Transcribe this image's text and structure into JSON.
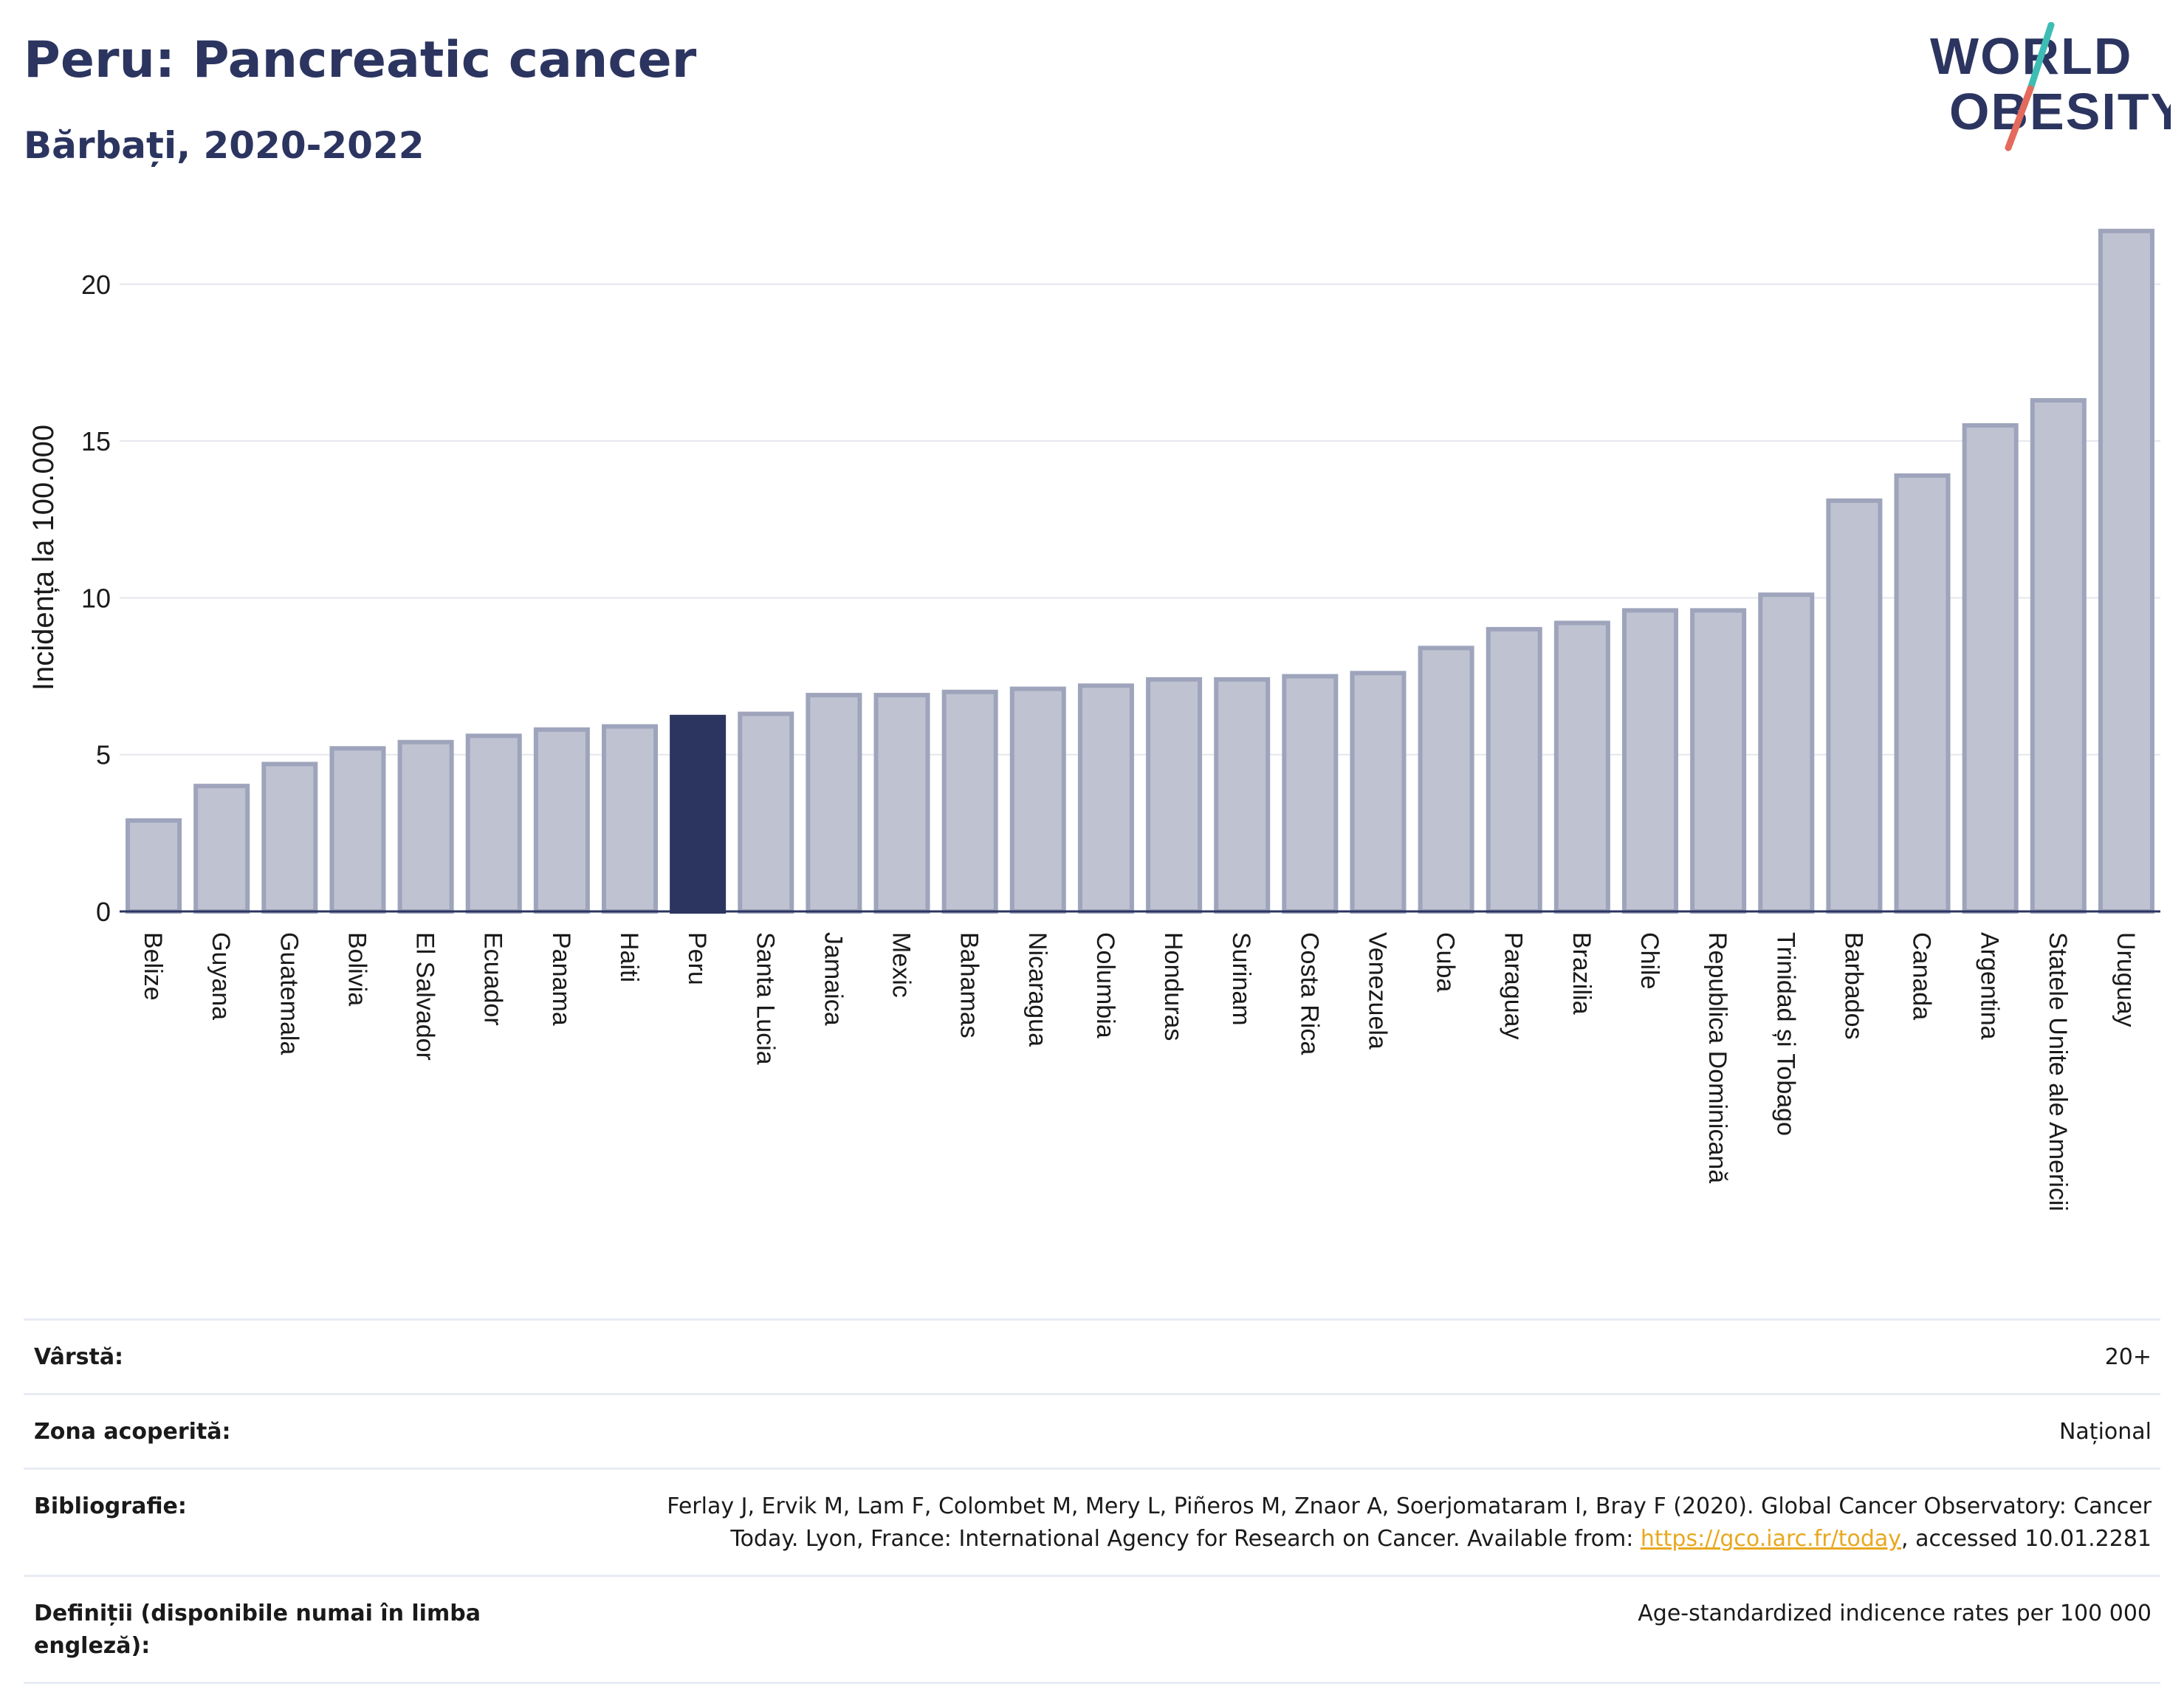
{
  "header": {
    "title": "Peru: Pancreatic cancer",
    "subtitle": "Bărbați, 2020-2022"
  },
  "logo": {
    "line1": "WORLD",
    "line2": "OBESITY"
  },
  "colors": {
    "title": "#2c3560",
    "bar_default": "#bfc3d1",
    "bar_border": "#9ea4bb",
    "bar_highlight": "#2c3560",
    "logo_teal": "#3dbdb4",
    "logo_red": "#e36a5d",
    "link": "#e8a81f"
  },
  "chart_data": {
    "type": "bar",
    "ylabel": "Incidența la 100.000",
    "xlabel": "",
    "ylim": [
      0,
      22
    ],
    "yticks": [
      0,
      5,
      10,
      15,
      20
    ],
    "grid": true,
    "highlight": "Peru",
    "categories": [
      "Belize",
      "Guyana",
      "Guatemala",
      "Bolivia",
      "El Salvador",
      "Ecuador",
      "Panama",
      "Haiti",
      "Peru",
      "Santa Lucia",
      "Jamaica",
      "Mexic",
      "Bahamas",
      "Nicaragua",
      "Columbia",
      "Honduras",
      "Surinam",
      "Costa Rica",
      "Venezuela",
      "Cuba",
      "Paraguay",
      "Brazilia",
      "Chile",
      "Republica Dominicană",
      "Trinidad și Tobago",
      "Barbados",
      "Canada",
      "Argentina",
      "Statele Unite ale Americii",
      "Uruguay"
    ],
    "values": [
      2.9,
      4.0,
      4.7,
      5.2,
      5.4,
      5.6,
      5.8,
      5.9,
      6.2,
      6.3,
      6.9,
      6.9,
      7.0,
      7.1,
      7.2,
      7.4,
      7.4,
      7.5,
      7.6,
      8.4,
      9.0,
      9.2,
      9.6,
      9.6,
      10.1,
      13.1,
      13.9,
      15.5,
      16.3,
      21.7
    ]
  },
  "info": {
    "rows": [
      {
        "label": "Vârstă:",
        "value": "20+"
      },
      {
        "label": "Zona acoperită:",
        "value": "Național"
      },
      {
        "label": "Bibliografie:",
        "value_pre": "Ferlay J, Ervik M, Lam F, Colombet M, Mery L, Piñeros M, Znaor A, Soerjomataram I, Bray F (2020). Global Cancer Observatory: Cancer Today. Lyon, France: International Agency for Research on Cancer. Available from: ",
        "link": "https://gco.iarc.fr/today",
        "value_post": ", accessed 10.01.2281"
      },
      {
        "label": "Definiții (disponibile numai în limba engleză):",
        "value": "Age-standardized indicence rates per 100 000"
      }
    ]
  }
}
